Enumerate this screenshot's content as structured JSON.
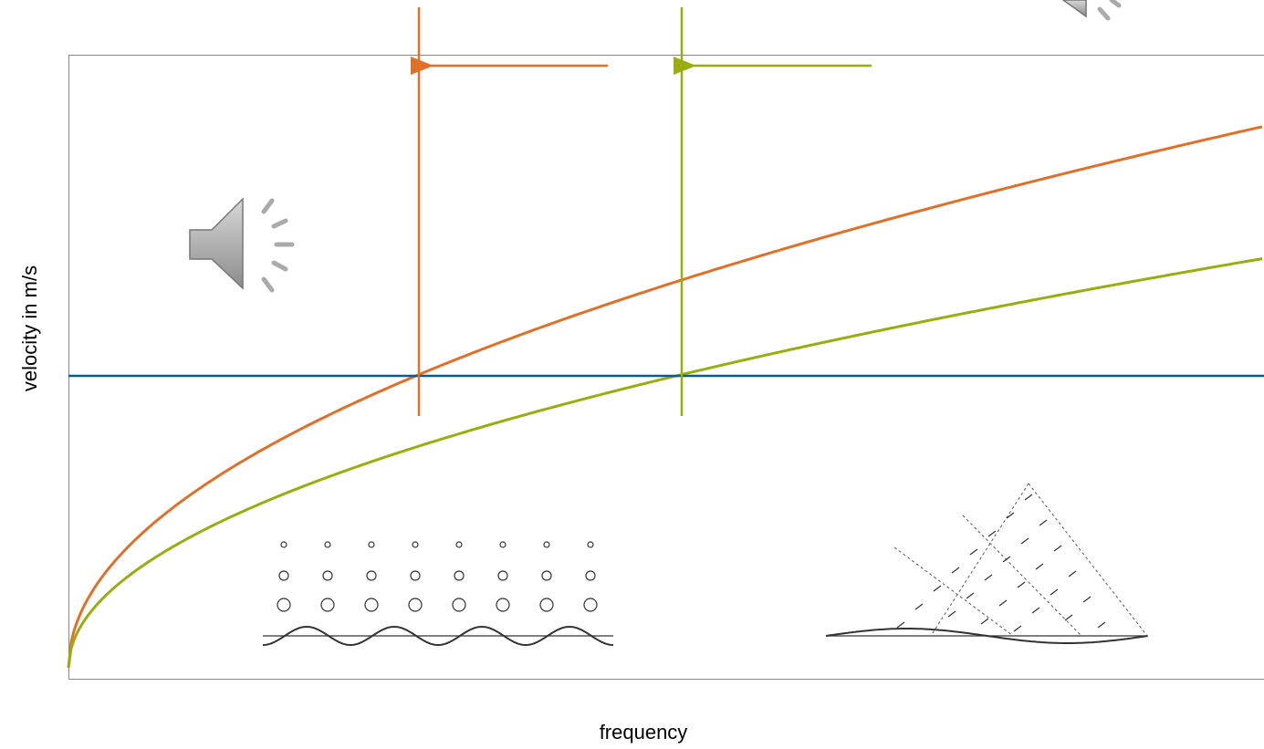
{
  "axes": {
    "y_label": "velocity in m/s",
    "x_label": "frequency"
  }
}
